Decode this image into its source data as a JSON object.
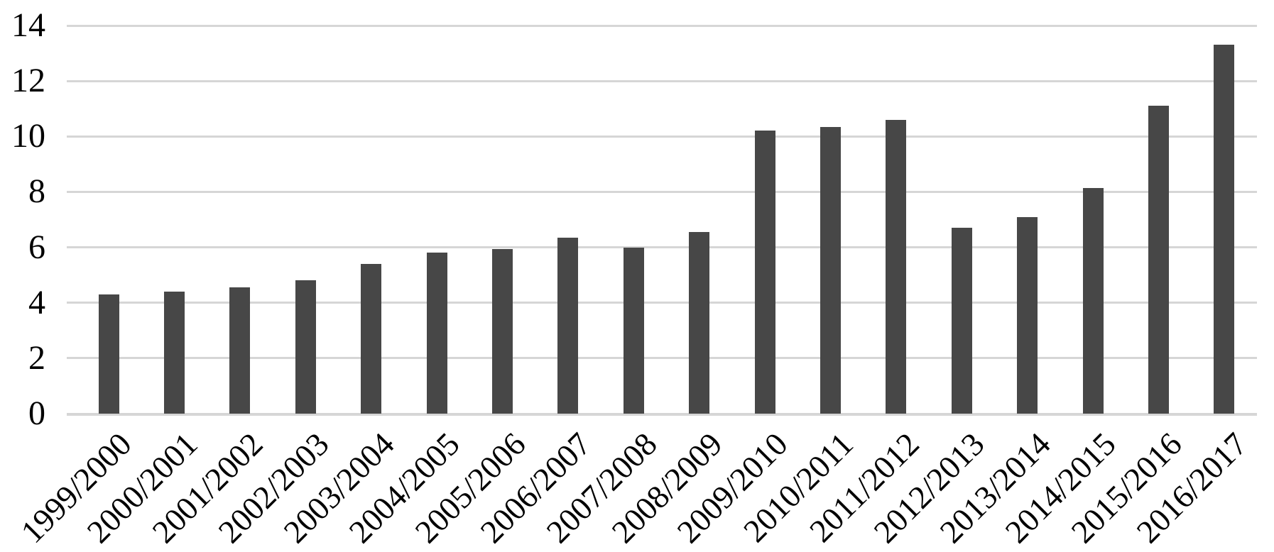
{
  "chart_data": {
    "type": "bar",
    "title": "",
    "xlabel": "",
    "ylabel": "",
    "categories": [
      "1999/2000",
      "2000/2001",
      "2001/2002",
      "2002/2003",
      "2003/2004",
      "2004/2005",
      "2005/2006",
      "2006/2007",
      "2007/2008",
      "2008/2009",
      "2009/2010",
      "2010/2011",
      "2011/2012",
      "2012/2013",
      "2013/2014",
      "2014/2015",
      "2015/2016",
      "2016/2017"
    ],
    "values": [
      4.3,
      4.4,
      4.55,
      4.8,
      5.4,
      5.8,
      5.95,
      6.35,
      6.0,
      6.55,
      10.2,
      10.35,
      10.6,
      6.7,
      7.1,
      8.15,
      11.1,
      13.3
    ],
    "ylim": [
      0,
      14
    ],
    "yticks": [
      0,
      2,
      4,
      6,
      8,
      10,
      12,
      14
    ],
    "grid": "horizontal",
    "legend": "none",
    "colors": {
      "bar": "#474747",
      "gridline": "#d6d6d6",
      "text": "#000000",
      "background": "#ffffff"
    }
  }
}
